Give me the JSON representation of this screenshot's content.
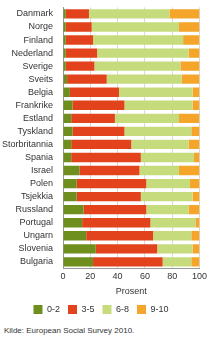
{
  "chart_data": {
    "type": "bar",
    "orientation": "horizontal",
    "stacked": true,
    "grid": true,
    "legend": "bottom",
    "x_label": "Prosent",
    "annotations": [
      "Kilde: European Social Survey 2010."
    ],
    "xlim": [
      0,
      100
    ],
    "xticks": [
      0,
      20,
      40,
      60,
      80,
      100
    ],
    "categories": [
      "Danmark",
      "Norge",
      "Finland",
      "Nederland",
      "Sverige",
      "Sveits",
      "Belgia",
      "Frankrike",
      "Estland",
      "Tyskland",
      "Storbritannia",
      "Spania",
      "Israel",
      "Polen",
      "Tsjekkia",
      "Russland",
      "Portugal",
      "Ungarn",
      "Slovenia",
      "Bulgaria"
    ],
    "series": [
      {
        "name": "0-2",
        "color": "#6e8e1e",
        "values": [
          2,
          2,
          2,
          2,
          2,
          3,
          5,
          7,
          6,
          7,
          6,
          6,
          12,
          10,
          10,
          15,
          14,
          17,
          24,
          22
        ]
      },
      {
        "name": "3-5",
        "color": "#e2431c",
        "values": [
          17,
          19,
          20,
          23,
          21,
          29,
          36,
          38,
          32,
          38,
          44,
          51,
          44,
          51,
          47,
          46,
          50,
          49,
          45,
          51
        ]
      },
      {
        "name": "6-8",
        "color": "#c6dc7c",
        "values": [
          59,
          64,
          66,
          67,
          63,
          55,
          54,
          50,
          47,
          49,
          42,
          39,
          29,
          32,
          38,
          31,
          33,
          28,
          26,
          21
        ]
      },
      {
        "name": "9-10",
        "color": "#f4a52a",
        "values": [
          22,
          15,
          12,
          8,
          14,
          13,
          5,
          5,
          15,
          6,
          8,
          4,
          15,
          7,
          5,
          8,
          3,
          6,
          5,
          6
        ]
      }
    ]
  }
}
